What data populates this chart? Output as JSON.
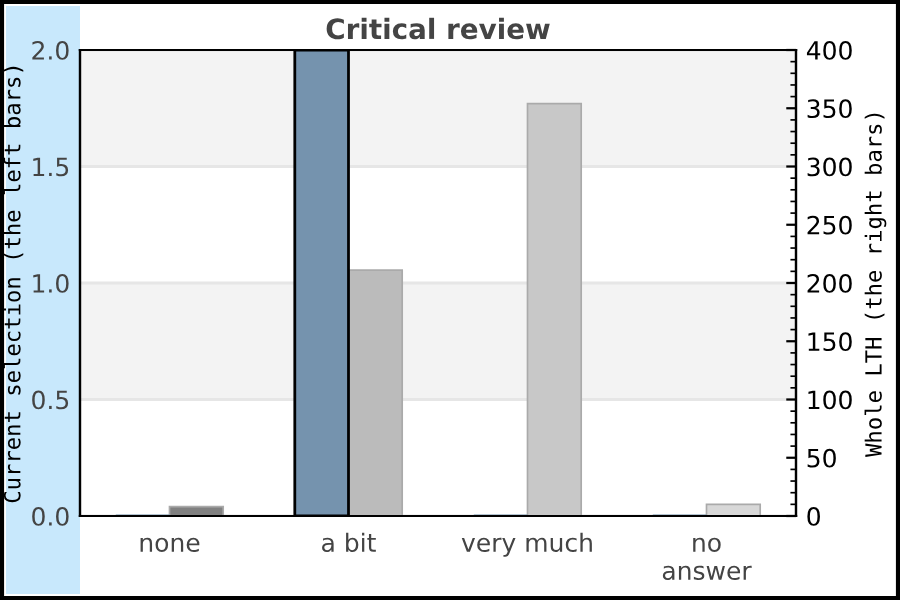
{
  "chart_data": {
    "type": "bar",
    "title": "Critical review",
    "ylabel": "Current selection (the left bars)",
    "y2label": "Whole LTH (the right bars)",
    "categories": [
      "none",
      "a bit",
      "very much",
      "no answer"
    ],
    "series": [
      {
        "color": "#7593ae",
        "values": [
          0,
          2.0,
          0,
          0
        ]
      },
      {
        "colors": [
          "#808080",
          "#bbbbbb",
          "#c8c8c8",
          "#d8d8d8"
        ],
        "values": [
          8,
          211,
          354,
          10
        ],
        "axis": "y2"
      }
    ],
    "ylim": [
      0,
      2.0
    ],
    "yticks": [
      {
        "value": 0,
        "label": "0.0"
      },
      {
        "value": 0.5,
        "label": "0.5"
      },
      {
        "value": 1.0,
        "label": "1.0"
      },
      {
        "value": 1.5,
        "label": "1.5"
      },
      {
        "value": 2.0,
        "label": "2.0"
      }
    ],
    "y2lim": [
      0,
      400
    ],
    "y2ticks": [
      0,
      50,
      100,
      150,
      200,
      250,
      300,
      350,
      400
    ],
    "bands": [
      {
        "axis": "y",
        "from": 0.5,
        "to": 1.0,
        "color": "#f3f3f3"
      },
      {
        "axis": "y",
        "from": 1.5,
        "to": 2.0,
        "color": "#f3f3f3"
      }
    ],
    "grid": "y",
    "legend": false
  }
}
